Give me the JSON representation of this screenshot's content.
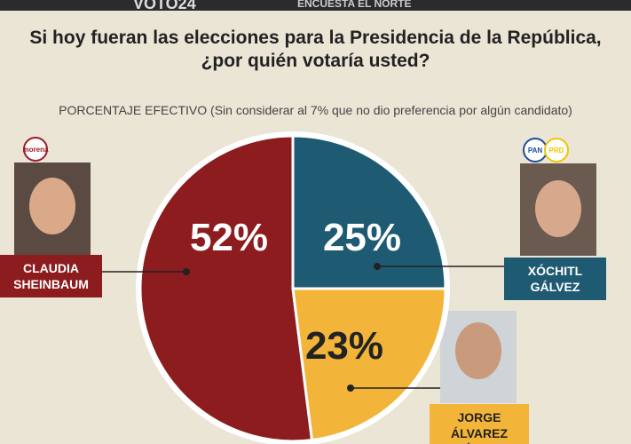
{
  "header": {
    "brand": "VOTO24",
    "source": "ENCUESTA EL NORTE"
  },
  "party_logos": [
    "morena",
    "PAN",
    "PRD"
  ],
  "chart_data": {
    "type": "pie",
    "title": [
      "Si hoy fueran las elecciones para la Presidencia de la República,",
      "¿por quién votaría usted?"
    ],
    "subtitle": "PORCENTAJE EFECTIVO (Sin considerar al 7% que no dio preferencia por algún candidato)",
    "categories": [
      "CLAUDIA SHEINBAUM",
      "XÓCHITL GÁLVEZ",
      "JORGE ÁLVAREZ MÁYNEZ"
    ],
    "values": [
      52,
      25,
      23
    ],
    "value_labels": [
      "52%",
      "25%",
      "23%"
    ],
    "colors": [
      "#8c1c1e",
      "#1e5a72",
      "#f3b43a"
    ]
  }
}
